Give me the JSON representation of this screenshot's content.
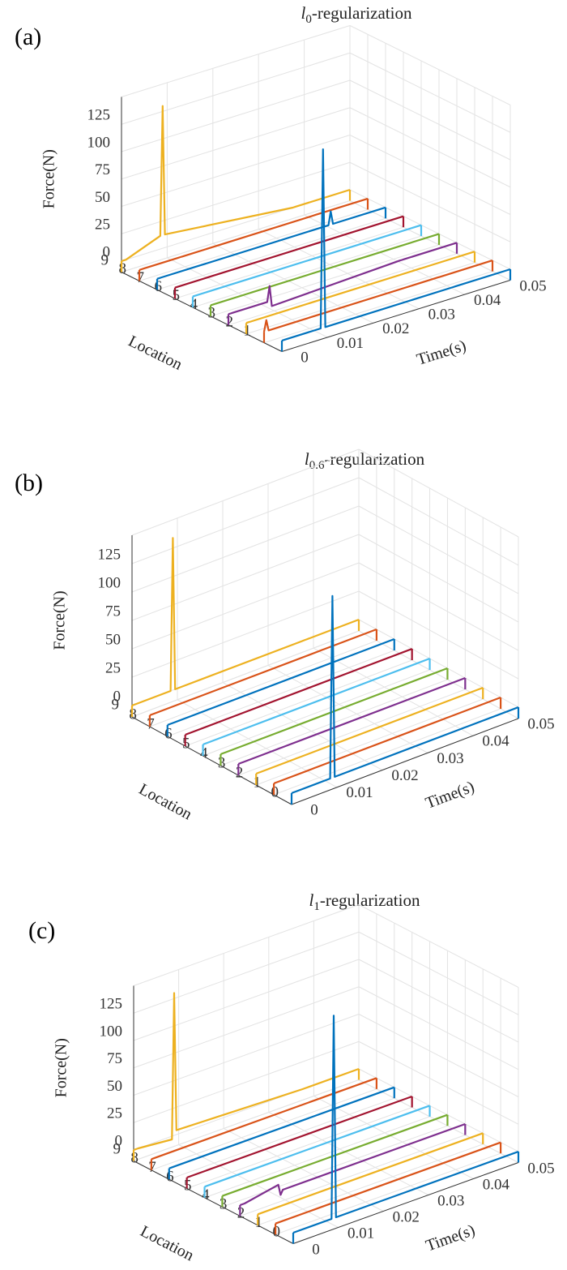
{
  "chart_data": [
    {
      "type": "waterfall",
      "panel": "(a)",
      "title": {
        "variable": "l",
        "subscript": "0",
        "text": "-regularization"
      },
      "x_label": "Time(s)",
      "y_label": "Location",
      "z_label": "Force(N)",
      "xlim": [
        0,
        0.05
      ],
      "xticks": [
        0,
        0.01,
        0.02,
        0.03,
        0.04,
        0.05
      ],
      "ylim": [
        0,
        9
      ],
      "yticks": [
        1,
        2,
        3,
        4,
        5,
        6,
        7,
        8,
        9
      ],
      "zlim": [
        -10,
        150
      ],
      "zticks": [
        0,
        25,
        50,
        75,
        100,
        125
      ],
      "grid": true,
      "x": [
        0,
        0.0005,
        0.001,
        0.0085,
        0.009,
        0.0095,
        0.0375,
        0.038,
        0.0385,
        0.05
      ],
      "series": [
        {
          "location": 0,
          "color": "#0072bd",
          "values": [
            0,
            0,
            0,
            0,
            163,
            0,
            0,
            0,
            0,
            0
          ]
        },
        {
          "location": 1,
          "color": "#d95319",
          "values": [
            0,
            10,
            0,
            0,
            0,
            0,
            0,
            0,
            0,
            0
          ]
        },
        {
          "location": 2,
          "color": "#edb120",
          "values": [
            0,
            0,
            0,
            0,
            0,
            0,
            0,
            0,
            0,
            0
          ]
        },
        {
          "location": 3,
          "color": "#7e2f8e",
          "values": [
            0,
            0,
            0,
            0,
            14,
            -5,
            0,
            0,
            0,
            0
          ]
        },
        {
          "location": 4,
          "color": "#77ac30",
          "values": [
            0,
            0,
            0,
            0,
            0,
            0,
            0,
            0,
            0,
            0
          ]
        },
        {
          "location": 5,
          "color": "#4dbeee",
          "values": [
            0,
            0,
            0,
            0,
            0,
            0,
            0,
            0,
            0,
            0
          ]
        },
        {
          "location": 6,
          "color": "#a2142f",
          "values": [
            0,
            0,
            0,
            0,
            0,
            0,
            0,
            0,
            0,
            0
          ]
        },
        {
          "location": 7,
          "color": "#0072bd",
          "values": [
            0,
            0,
            0,
            0,
            0,
            0,
            0,
            12,
            0,
            0
          ]
        },
        {
          "location": 8,
          "color": "#d95319",
          "values": [
            0,
            0,
            0,
            0,
            0,
            0,
            0,
            0,
            0,
            0
          ]
        },
        {
          "location": 9,
          "color": "#edb120",
          "values": [
            0,
            0,
            0,
            12,
            130,
            12,
            0,
            0,
            0,
            0
          ]
        }
      ]
    },
    {
      "type": "waterfall",
      "panel": "(b)",
      "title": {
        "variable": "l",
        "subscript": "0.6",
        "text": "-regularization"
      },
      "x_label": "Time(s)",
      "y_label": "Location",
      "z_label": "Force(N)",
      "xlim": [
        0,
        0.05
      ],
      "xticks": [
        0,
        0.01,
        0.02,
        0.03,
        0.04,
        0.05
      ],
      "ylim": [
        0,
        9
      ],
      "yticks": [
        0,
        1,
        2,
        3,
        4,
        5,
        6,
        7,
        8,
        9
      ],
      "zlim": [
        -10,
        150
      ],
      "zticks": [
        0,
        25,
        50,
        75,
        100,
        125
      ],
      "grid": true,
      "x": [
        0,
        0.0005,
        0.001,
        0.0085,
        0.009,
        0.0095,
        0.0375,
        0.038,
        0.0385,
        0.05
      ],
      "series": [
        {
          "location": 0,
          "color": "#0072bd",
          "values": [
            0,
            0,
            0,
            0,
            160,
            0,
            0,
            0,
            0,
            0
          ]
        },
        {
          "location": 1,
          "color": "#d95319",
          "values": [
            0,
            0,
            0,
            0,
            0,
            0,
            0,
            0,
            0,
            0
          ]
        },
        {
          "location": 2,
          "color": "#edb120",
          "values": [
            0,
            0,
            0,
            0,
            0,
            0,
            0,
            0,
            0,
            0
          ]
        },
        {
          "location": 3,
          "color": "#7e2f8e",
          "values": [
            0,
            0,
            0,
            0,
            0,
            0,
            0,
            0,
            0,
            0
          ]
        },
        {
          "location": 4,
          "color": "#77ac30",
          "values": [
            0,
            0,
            0,
            0,
            0,
            0,
            0,
            0,
            0,
            0
          ]
        },
        {
          "location": 5,
          "color": "#4dbeee",
          "values": [
            0,
            0,
            0,
            0,
            0,
            0,
            0,
            0,
            0,
            0
          ]
        },
        {
          "location": 6,
          "color": "#a2142f",
          "values": [
            0,
            0,
            0,
            0,
            0,
            0,
            0,
            0,
            0,
            0
          ]
        },
        {
          "location": 7,
          "color": "#0072bd",
          "values": [
            0,
            0,
            0,
            0,
            0,
            0,
            0,
            0,
            0,
            0
          ]
        },
        {
          "location": 8,
          "color": "#d95319",
          "values": [
            0,
            0,
            0,
            0,
            0,
            0,
            0,
            0,
            0,
            0
          ]
        },
        {
          "location": 9,
          "color": "#edb120",
          "values": [
            0,
            0,
            0,
            0,
            134,
            0,
            0,
            0,
            0,
            0
          ]
        }
      ]
    },
    {
      "type": "waterfall",
      "panel": "(c)",
      "title": {
        "variable": "l",
        "subscript": "1",
        "text": "-regularization"
      },
      "x_label": "Time(s)",
      "y_label": "Location",
      "z_label": "Force(N)",
      "xlim": [
        0,
        0.05
      ],
      "xticks": [
        0,
        0.01,
        0.02,
        0.03,
        0.04,
        0.05
      ],
      "ylim": [
        0,
        9
      ],
      "yticks": [
        0,
        1,
        2,
        3,
        4,
        5,
        6,
        7,
        8,
        9
      ],
      "zlim": [
        -10,
        150
      ],
      "zticks": [
        0,
        25,
        50,
        75,
        100,
        125
      ],
      "grid": true,
      "x": [
        0,
        0.0005,
        0.001,
        0.0085,
        0.009,
        0.0095,
        0.0375,
        0.038,
        0.0385,
        0.05
      ],
      "series": [
        {
          "location": 0,
          "color": "#0072bd",
          "values": [
            0,
            0,
            0,
            0,
            185,
            0,
            0,
            0,
            0,
            0
          ]
        },
        {
          "location": 1,
          "color": "#d95319",
          "values": [
            0,
            0,
            0,
            0,
            0,
            0,
            0,
            0,
            0,
            0
          ]
        },
        {
          "location": 2,
          "color": "#edb120",
          "values": [
            0,
            0,
            0,
            0,
            0,
            0,
            0,
            0,
            0,
            0
          ]
        },
        {
          "location": 3,
          "color": "#7e2f8e",
          "values": [
            0,
            0,
            0,
            6,
            -4,
            0,
            0,
            0,
            0,
            0
          ]
        },
        {
          "location": 4,
          "color": "#77ac30",
          "values": [
            0,
            0,
            0,
            0,
            0,
            0,
            0,
            0,
            0,
            0
          ]
        },
        {
          "location": 5,
          "color": "#4dbeee",
          "values": [
            0,
            0,
            0,
            0,
            0,
            0,
            0,
            0,
            0,
            0
          ]
        },
        {
          "location": 6,
          "color": "#a2142f",
          "values": [
            0,
            0,
            0,
            0,
            0,
            0,
            0,
            0,
            0,
            0
          ]
        },
        {
          "location": 7,
          "color": "#0072bd",
          "values": [
            0,
            0,
            0,
            0,
            0,
            0,
            0,
            0,
            0,
            0
          ]
        },
        {
          "location": 8,
          "color": "#d95319",
          "values": [
            0,
            0,
            0,
            0,
            0,
            0,
            0,
            0,
            0,
            0
          ]
        },
        {
          "location": 9,
          "color": "#edb120",
          "values": [
            0,
            0,
            0,
            -3,
            130,
            4,
            0,
            0,
            0,
            0
          ]
        }
      ]
    }
  ]
}
